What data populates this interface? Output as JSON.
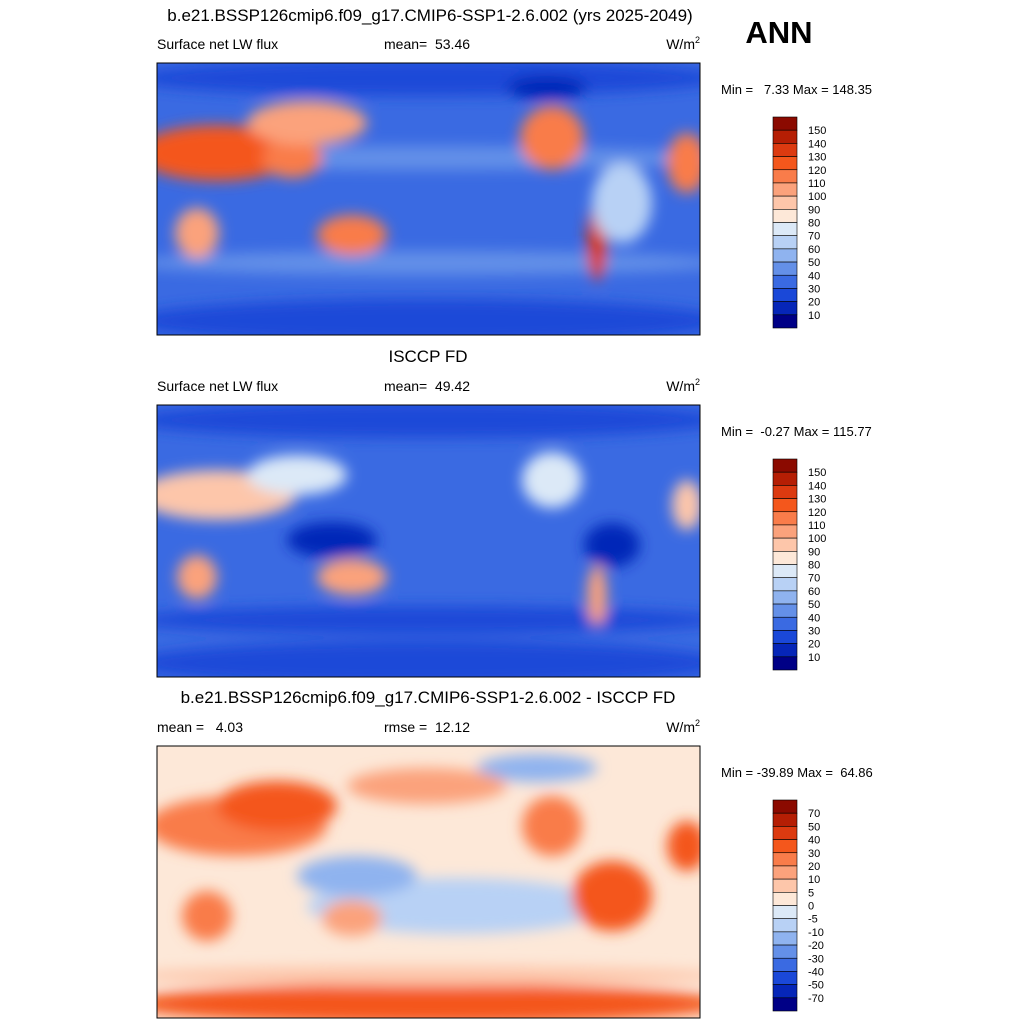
{
  "header": {
    "title": "b.e21.BSSP126cmip6.f09_g17.CMIP6-SSP1-2.6.002 (yrs 2025-2049)",
    "season": "ANN"
  },
  "palette": [
    "#8b0a00",
    "#b51e04",
    "#dc3a10",
    "#f4571c",
    "#f97c4a",
    "#fba27c",
    "#fdc6aa",
    "#fde8d8",
    "#dce9f7",
    "#b8d1f5",
    "#8fb3ef",
    "#6490e8",
    "#3a6ae2",
    "#1a48d8",
    "#0626b8",
    "#000086"
  ],
  "panels": [
    {
      "left_label": "Surface net LW flux",
      "center_label": "mean=  53.46",
      "units": {
        "base": "W/m",
        "exponent": "2"
      },
      "min_max": "Min =   7.33 Max = 148.35",
      "colorbar": [
        150,
        140,
        130,
        120,
        110,
        100,
        90,
        80,
        70,
        60,
        50,
        40,
        30,
        20,
        10
      ]
    },
    {
      "title": "ISCCP FD",
      "left_label": "Surface net LW flux",
      "center_label": "mean=  49.42",
      "units": {
        "base": "W/m",
        "exponent": "2"
      },
      "min_max": "Min =  -0.27 Max = 115.77",
      "colorbar": [
        150,
        140,
        130,
        120,
        110,
        100,
        90,
        80,
        70,
        60,
        50,
        40,
        30,
        20,
        10
      ]
    },
    {
      "title": "b.e21.BSSP126cmip6.f09_g17.CMIP6-SSP1-2.6.002 - ISCCP FD",
      "left_label": "mean =   4.03",
      "center_label": "rmse =  12.12",
      "units": {
        "base": "W/m",
        "exponent": "2"
      },
      "min_max": "Min = -39.89 Max =  64.86",
      "colorbar": [
        70,
        50,
        40,
        30,
        20,
        10,
        5,
        0,
        -5,
        -10,
        -20,
        -30,
        -40,
        -50,
        -70
      ]
    }
  ]
}
